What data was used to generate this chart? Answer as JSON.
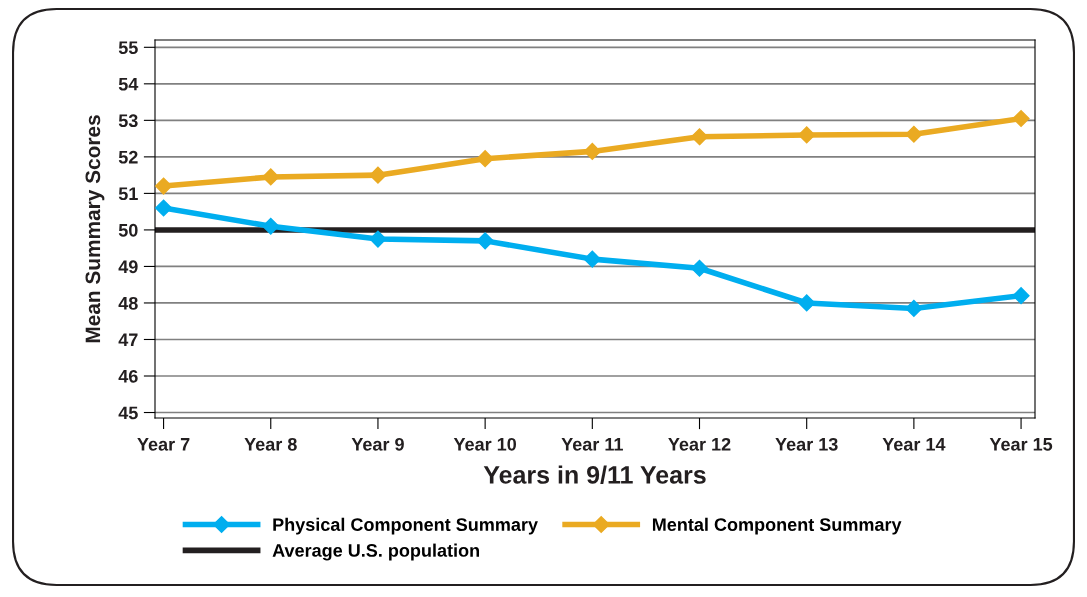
{
  "chart_data": {
    "type": "line",
    "xlabel": "Years in 9/11 Years",
    "ylabel": "Mean Summary Scores",
    "categories": [
      "Year 7",
      "Year 8",
      "Year 9",
      "Year 10",
      "Year 11",
      "Year 12",
      "Year 13",
      "Year 14",
      "Year 15"
    ],
    "series": [
      {
        "name": "Physical Component Summary",
        "color": "#00aeef",
        "values": [
          50.6,
          50.1,
          49.75,
          49.7,
          49.2,
          48.95,
          48.0,
          47.85,
          48.2
        ]
      },
      {
        "name": "Mental Component Summary",
        "color": "#eaaa22",
        "values": [
          51.2,
          51.45,
          51.5,
          51.95,
          52.15,
          52.55,
          52.6,
          52.62,
          53.05
        ]
      }
    ],
    "ref_lines": [
      {
        "axis": "y",
        "value": 50,
        "label": "Average U.S. population",
        "color": "#231f20"
      }
    ],
    "ylim": [
      44.85,
      55.2
    ],
    "yticks": [
      45,
      46,
      47,
      48,
      49,
      50,
      51,
      52,
      53,
      54,
      55
    ],
    "grid": "y",
    "legend": "bottom",
    "marker": "diamond",
    "line_style": "solid"
  }
}
